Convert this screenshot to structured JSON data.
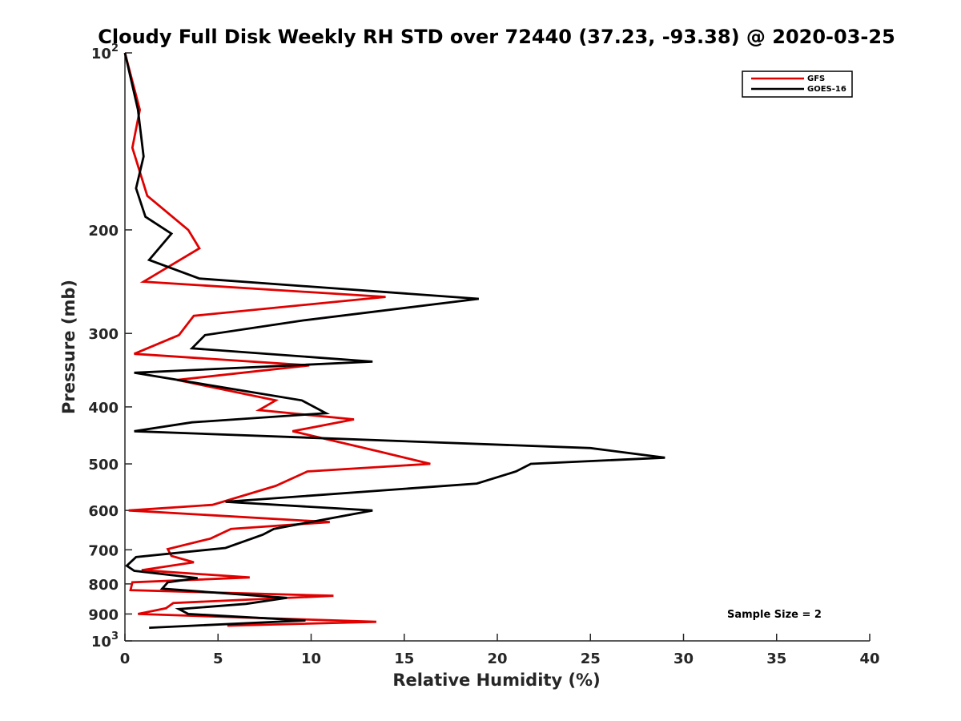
{
  "chart_data": {
    "type": "line",
    "title": "Cloudy Full Disk Weekly RH STD over 72440 (37.23, -93.38) @ 2020-03-25",
    "xlabel": "Relative Humidity (%)",
    "ylabel": "Pressure (mb)",
    "xlim": [
      0,
      40
    ],
    "ylim": [
      100,
      1000
    ],
    "y_scale": "log",
    "y_reversed": true,
    "x_ticks": [
      0,
      5,
      10,
      15,
      20,
      25,
      30,
      35,
      40
    ],
    "x_tick_labels": [
      "0",
      "5",
      "10",
      "15",
      "20",
      "25",
      "30",
      "35",
      "40"
    ],
    "y_ticks": [
      100,
      200,
      300,
      400,
      500,
      600,
      700,
      800,
      900,
      1000
    ],
    "y_tick_labels": [
      {
        "base": "10",
        "exp": "2"
      },
      {
        "base": "200",
        "exp": ""
      },
      {
        "base": "300",
        "exp": ""
      },
      {
        "base": "400",
        "exp": ""
      },
      {
        "base": "500",
        "exp": ""
      },
      {
        "base": "600",
        "exp": ""
      },
      {
        "base": "700",
        "exp": ""
      },
      {
        "base": "800",
        "exp": ""
      },
      {
        "base": "900",
        "exp": ""
      },
      {
        "base": "10",
        "exp": "3"
      }
    ],
    "grid": false,
    "legend_position": "top-right",
    "annotation": "Sample Size = 2",
    "series": [
      {
        "name": "GFS",
        "color": "#e00000",
        "x": [
          0.0,
          0.8,
          0.4,
          1.2,
          3.4,
          4.0,
          1.0,
          14.0,
          3.7,
          2.9,
          0.5,
          9.9,
          2.8,
          8.1,
          7.2,
          12.3,
          9.0,
          13.5,
          16.4,
          9.8,
          8.1,
          4.7,
          0.2,
          11.0,
          5.7,
          4.6,
          2.3,
          2.5,
          3.7,
          0.9,
          6.7,
          0.4,
          0.3,
          11.2,
          2.6,
          2.2,
          0.7,
          13.5,
          5.5
        ],
        "y": [
          100,
          125,
          145,
          175,
          200,
          215,
          245,
          260,
          280,
          302,
          325,
          340,
          360,
          390,
          405,
          420,
          440,
          475,
          500,
          515,
          545,
          587,
          600,
          628,
          645,
          670,
          698,
          717,
          735,
          758,
          780,
          795,
          820,
          838,
          862,
          880,
          900,
          928,
          942
        ]
      },
      {
        "name": "GOES-16",
        "color": "#000000",
        "x": [
          0.0,
          0.7,
          1.0,
          0.6,
          1.1,
          2.5,
          1.3,
          4.0,
          19.0,
          9.6,
          4.3,
          3.6,
          13.3,
          0.5,
          9.5,
          10.8,
          3.6,
          0.5,
          25.0,
          29.0,
          21.8,
          21.0,
          18.9,
          5.4,
          13.3,
          8.0,
          7.4,
          5.4,
          0.6,
          0.1,
          0.5,
          3.9,
          2.3,
          2.0,
          8.7,
          6.5,
          2.9,
          3.4,
          9.7,
          1.3
        ],
        "y": [
          100,
          125,
          150,
          170,
          190,
          203,
          225,
          242,
          262,
          285,
          302,
          318,
          335,
          350,
          390,
          410,
          425,
          440,
          470,
          488,
          500,
          515,
          540,
          580,
          600,
          645,
          660,
          695,
          720,
          745,
          760,
          782,
          795,
          815,
          845,
          865,
          883,
          900,
          923,
          950
        ]
      }
    ]
  }
}
